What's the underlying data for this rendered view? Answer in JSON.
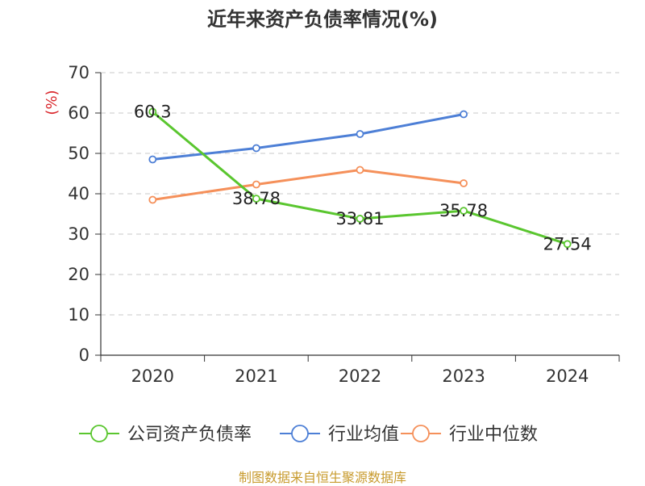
{
  "title": "近年来资产负债率情况(%)",
  "source": "制图数据来自恒生聚源数据库",
  "chart_data": {
    "type": "line",
    "title": "近年来资产负债率情况(%)",
    "ylabel": "(%)",
    "xlabel": "",
    "categories": [
      "2020",
      "2021",
      "2022",
      "2023",
      "2024"
    ],
    "ylim": [
      0,
      70
    ],
    "yticks": [
      "0",
      "10",
      "20",
      "30",
      "40",
      "50",
      "60",
      "70"
    ],
    "grid": true,
    "legend_position": "bottom",
    "series": [
      {
        "name": "公司资产负债率",
        "color": "#5ac62f",
        "values": [
          60.3,
          38.78,
          33.81,
          35.78,
          27.54
        ],
        "labels": [
          "60.3",
          "38.78",
          "33.81",
          "35.78",
          "27.54"
        ],
        "show_labels": true
      },
      {
        "name": "行业均值",
        "color": "#4d7fd6",
        "values": [
          48.5,
          51.3,
          54.8,
          59.7,
          null
        ],
        "show_labels": false
      },
      {
        "name": "行业中位数",
        "color": "#f5905a",
        "values": [
          38.5,
          42.3,
          45.9,
          42.6,
          null
        ],
        "show_labels": false
      }
    ]
  }
}
